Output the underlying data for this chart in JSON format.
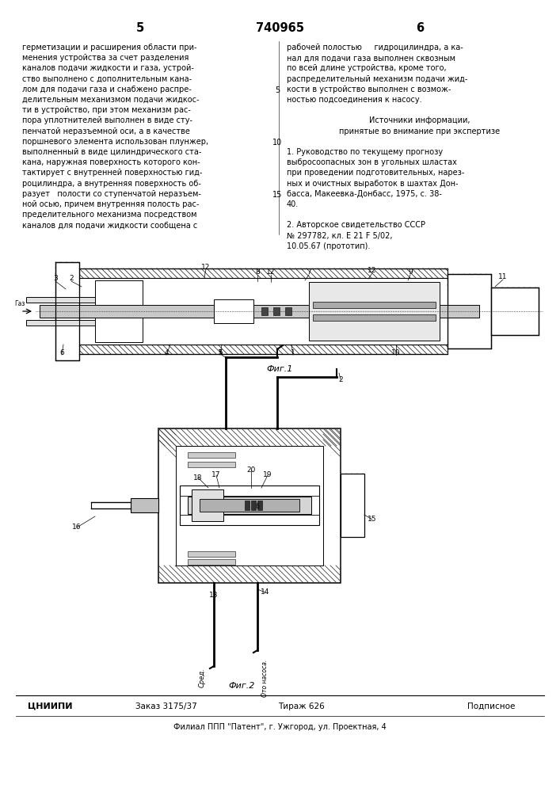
{
  "bg_color": "#ffffff",
  "header_left_num": "5",
  "header_center": "740965",
  "header_right_num": "6",
  "col_left": [
    "герметизации и расширения области при-",
    "менения устройства за счет разделения",
    "каналов подачи жидкости и газа, устрой-",
    "ство выполнено с дополнительным кана-",
    "лом для подачи газа и снабжено распре-",
    "делительным механизмом подачи жидкос-",
    "ти в устройство, при этом механизм рас-",
    "пора уплотнителей выполнен в виде сту-",
    "пенчатой неразъемной оси, а в качестве",
    "поршневого элемента использован плунжер,",
    "выполненный в виде цилиндрического ста-",
    "кана, наружная поверхность которого кон-",
    "тактирует с внутренней поверхностью гид-",
    "роцилиндра, а внутренняя поверхность об-",
    "разует   полости со ступенчатой неразъем-",
    "ной осью, причем внутренняя полость рас-",
    "пределительного механизма посредством",
    "каналов для подачи жидкости сообщена с"
  ],
  "col_right": [
    "рабочей полостью     гидроцилиндра, а ка-",
    "нал для подачи газа выполнен сквозным",
    "по всей длине устройства, кроме того,",
    "распределительный механизм подачи жид-",
    "кости в устройство выполнен с возмож-",
    "ностью подсоединения к насосу.",
    "",
    "Источники информации,",
    "принятые во внимание при экспертизе",
    "",
    "1. Руководство по текущему прогнозу",
    "выбросоопасных зон в угольных шластах",
    "при проведении подготовительных, нарез-",
    "ных и очистных выработок в шахтах Дон-",
    "басса, Макеевка-Донбасс, 1975, с. 38-",
    "40.",
    "",
    "2. Авторское свидетельство СССР",
    "№ 297782, кл. Е 21 F 5/02,",
    "10.05.67 (прототип)."
  ],
  "fig1_label": "Фиг.1",
  "fig2_label": "Фиг.2",
  "fig2_bottom_left": "Сред.",
  "fig2_bottom_right": "Ото насоса.",
  "footer_org": "ЦНИИПИ",
  "footer_order": "Заказ 3175/37",
  "footer_edition": "Тираж 626",
  "footer_type": "Подписное",
  "footer_address": "Филиал ППП \"Патент\", г. Ужгород, ул. Проектная, 4",
  "text_size": 7.0,
  "header_size": 10.5
}
